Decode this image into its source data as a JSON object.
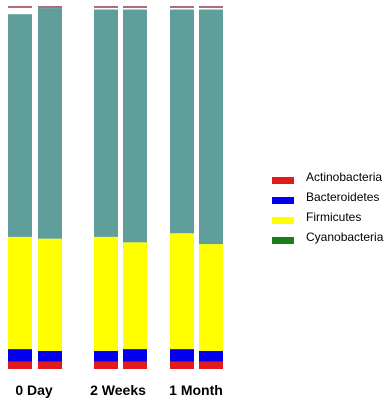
{
  "chart_data": {
    "type": "bar",
    "stacked": true,
    "groups": [
      "0 Day",
      "2 Weeks",
      "1 Month"
    ],
    "bars_per_group": 2,
    "series": [
      {
        "name": "Actinobacteria",
        "color": "#e31a1c",
        "values": [
          0.02,
          0.02,
          0.02,
          0.02,
          0.02,
          0.02
        ]
      },
      {
        "name": "Bacteroidetes",
        "color": "#0000ee",
        "values": [
          0.035,
          0.03,
          0.03,
          0.035,
          0.035,
          0.03
        ]
      },
      {
        "name": "Firmicutes",
        "color": "#ffff00",
        "values": [
          0.31,
          0.31,
          0.315,
          0.295,
          0.32,
          0.295
        ]
      },
      {
        "name": "Cyanobacteria",
        "color": "#1a7f1a",
        "values": [
          0,
          0,
          0,
          0,
          0,
          0
        ]
      },
      {
        "name": "",
        "color": "#5f9e9a",
        "values": [
          0.615,
          0.637,
          0.628,
          0.643,
          0.618,
          0.648
        ]
      }
    ],
    "legend_position": "right",
    "ylim": [
      0,
      1
    ]
  },
  "legend": [
    {
      "label": "Actinobacteria",
      "color": "#e31a1c"
    },
    {
      "label": "Bacteroidetes",
      "color": "#0000ee"
    },
    {
      "label": "Firmicutes",
      "color": "#ffff00"
    },
    {
      "label": "Cyanobacteria",
      "color": "#1a7f1a"
    }
  ],
  "group_labels": [
    "0 Day",
    "2 Weeks",
    "1 Month"
  ]
}
